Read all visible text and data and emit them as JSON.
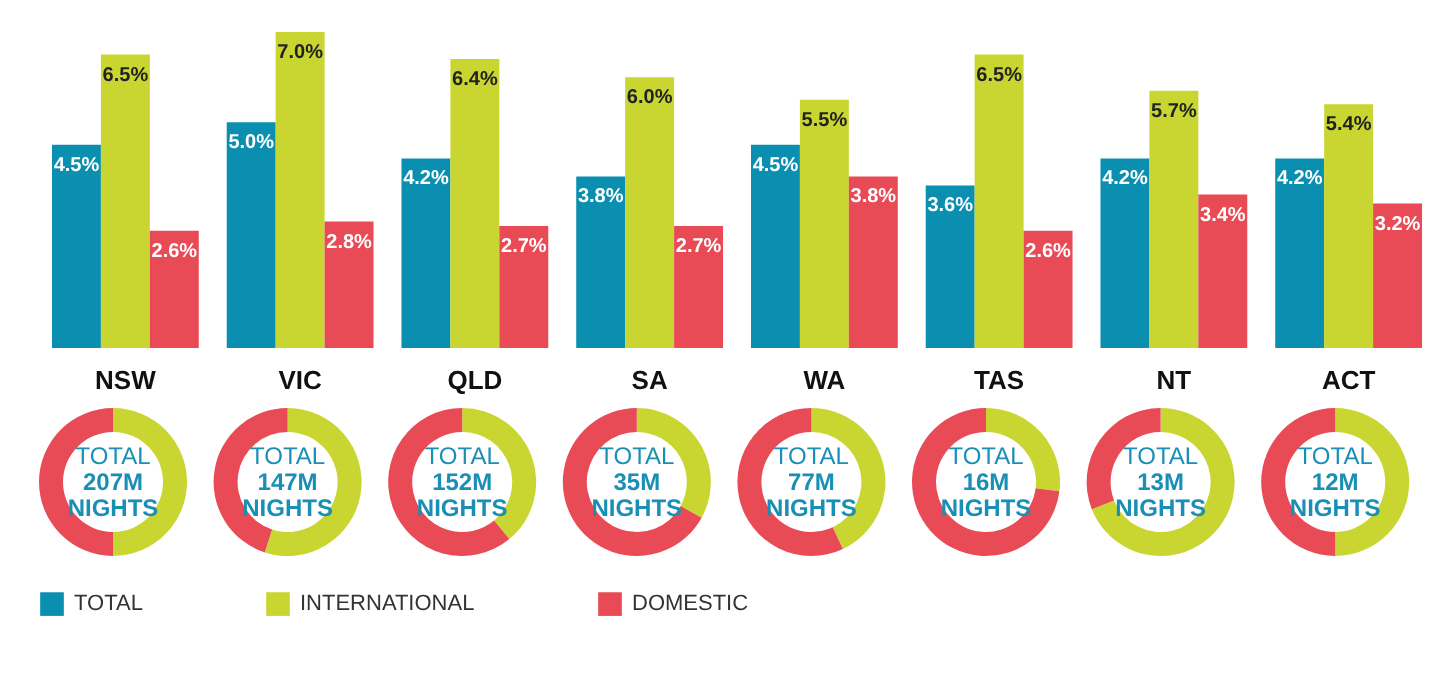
{
  "chart_data": [
    {
      "type": "bar",
      "categories": [
        "NSW",
        "VIC",
        "QLD",
        "SA",
        "WA",
        "TAS",
        "NT",
        "ACT"
      ],
      "legend": "bottom",
      "series": [
        {
          "name": "TOTAL",
          "color": "#0b8fb0",
          "values": [
            4.5,
            5.0,
            4.2,
            3.8,
            4.5,
            3.6,
            4.2,
            4.2
          ],
          "value_labels": [
            "4.5%",
            "5.0%",
            "4.2%",
            "3.8%",
            "4.5%",
            "3.6%",
            "4.2%",
            "4.2%"
          ]
        },
        {
          "name": "INTERNATIONAL",
          "color": "#c9d631",
          "values": [
            6.5,
            7.0,
            6.4,
            6.0,
            5.5,
            6.5,
            5.7,
            5.4
          ],
          "value_labels": [
            "6.5%",
            "7.0%",
            "6.4%",
            "6.0%",
            "5.5%",
            "6.5%",
            "5.7%",
            "5.4%"
          ]
        },
        {
          "name": "DOMESTIC",
          "color": "#e84b55",
          "values": [
            2.6,
            2.8,
            2.7,
            2.7,
            3.8,
            2.6,
            3.4,
            3.2
          ],
          "value_labels": [
            "2.6%",
            "2.8%",
            "2.7%",
            "2.7%",
            "3.8%",
            "2.6%",
            "3.4%",
            "3.2%"
          ]
        }
      ]
    },
    {
      "type": "donut",
      "categories": [
        null,
        null
      ],
      "values": [
        50,
        50
      ],
      "colors": [
        "#c9d631",
        "#e84b55"
      ],
      "annotations": [
        "TOTAL",
        "207M",
        "NIGHTS"
      ]
    },
    {
      "type": "donut",
      "categories": [
        null,
        null
      ],
      "values": [
        55,
        45
      ],
      "colors": [
        "#c9d631",
        "#e84b55"
      ],
      "annotations": [
        "TOTAL",
        "147M",
        "NIGHTS"
      ]
    },
    {
      "type": "donut",
      "categories": [
        null,
        null
      ],
      "values": [
        39,
        61
      ],
      "colors": [
        "#c9d631",
        "#e84b55"
      ],
      "annotations": [
        "TOTAL",
        "152M",
        "NIGHTS"
      ]
    },
    {
      "type": "donut",
      "categories": [
        null,
        null
      ],
      "values": [
        33,
        67
      ],
      "colors": [
        "#c9d631",
        "#e84b55"
      ],
      "annotations": [
        "TOTAL",
        "35M",
        "NIGHTS"
      ]
    },
    {
      "type": "donut",
      "categories": [
        null,
        null
      ],
      "values": [
        43,
        57
      ],
      "colors": [
        "#c9d631",
        "#e84b55"
      ],
      "annotations": [
        "TOTAL",
        "77M",
        "NIGHTS"
      ]
    },
    {
      "type": "donut",
      "categories": [
        null,
        null
      ],
      "values": [
        27,
        73
      ],
      "colors": [
        "#c9d631",
        "#e84b55"
      ],
      "annotations": [
        "TOTAL",
        "16M",
        "NIGHTS"
      ]
    },
    {
      "type": "donut",
      "categories": [
        null,
        null
      ],
      "values": [
        69,
        31
      ],
      "colors": [
        "#c9d631",
        "#e84b55"
      ],
      "annotations": [
        "TOTAL",
        "13M",
        "NIGHTS"
      ]
    },
    {
      "type": "donut",
      "categories": [
        null,
        null
      ],
      "values": [
        50,
        50
      ],
      "colors": [
        "#c9d631",
        "#e84b55"
      ],
      "annotations": [
        "TOTAL",
        "12M",
        "NIGHTS"
      ]
    }
  ]
}
